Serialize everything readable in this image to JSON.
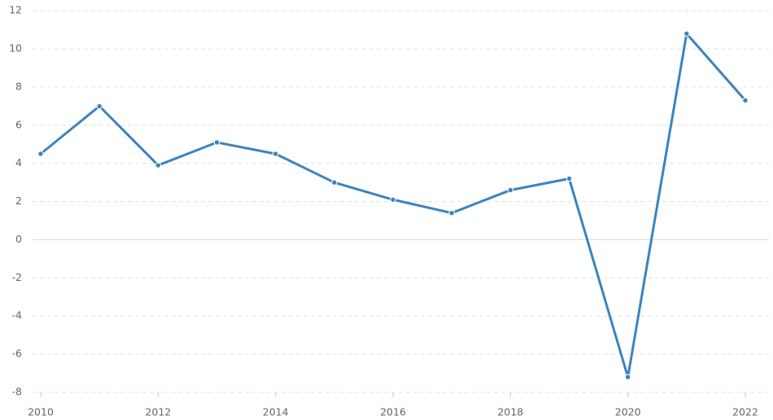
{
  "chart_data": {
    "type": "line",
    "x": [
      2010,
      2011,
      2012,
      2013,
      2014,
      2015,
      2016,
      2017,
      2018,
      2019,
      2020,
      2021,
      2022
    ],
    "series": [
      {
        "color": "#3a84bf",
        "values": [
          4.5,
          7.0,
          3.9,
          5.1,
          4.5,
          3.0,
          2.1,
          1.4,
          2.6,
          3.2,
          -7.2,
          10.8,
          7.3
        ]
      }
    ],
    "xlim": [
      2010,
      2022
    ],
    "xticks": [
      2010,
      2012,
      2014,
      2016,
      2018,
      2020,
      2022
    ],
    "ylim": [
      -8,
      12.5
    ],
    "yticks": [
      -8,
      -6,
      -4,
      -2,
      0,
      2,
      4,
      6,
      8,
      10,
      12
    ],
    "grid": true
  }
}
